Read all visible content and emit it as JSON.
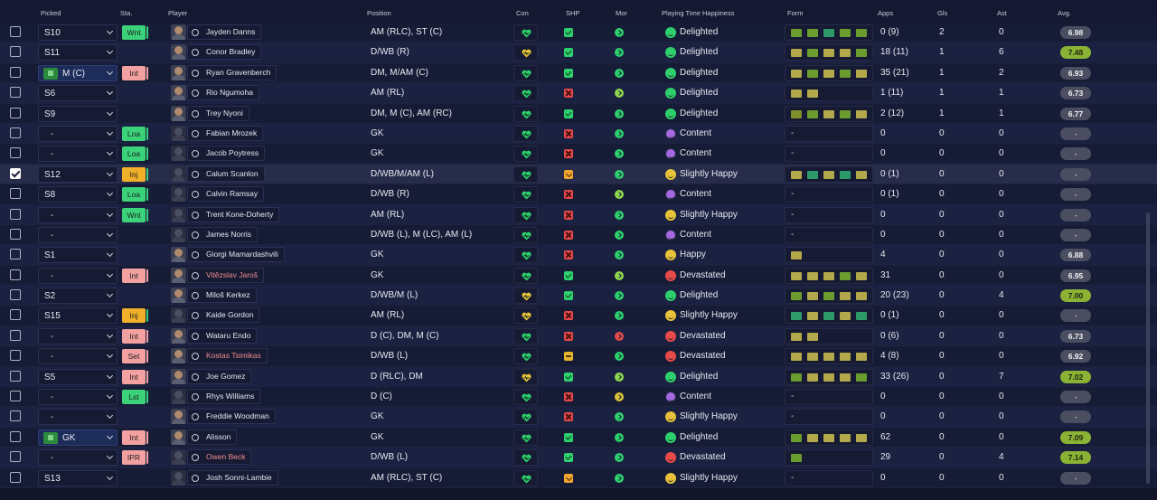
{
  "headers": {
    "picked": "Picked",
    "sta": "Sta.",
    "player": "Player",
    "position": "Position",
    "con": "Con",
    "shp": "SHP",
    "mor": "Mor",
    "happiness": "Playing Time Happiness",
    "form": "Form",
    "apps": "Apps",
    "gls": "Gls",
    "ast": "Ast",
    "avg": "Avg."
  },
  "colors": {
    "delighted": "#2ed06d",
    "content": "#a469e0",
    "slightly_happy": "#e8c23a",
    "devastated": "#e84a4a",
    "avg_good": "#8ab234"
  },
  "rows": [
    {
      "checked": false,
      "pick": "S10",
      "sta": "Wnt",
      "name": "Jayden Danns",
      "red": false,
      "pos": "AM (RLC), ST (C)",
      "con": "green",
      "shp": "ok",
      "mor": "g",
      "hap": "Delighted",
      "hapk": "del",
      "form": [
        "b",
        "b",
        "c",
        "b",
        "b"
      ],
      "apps": "0 (9)",
      "gls": "2",
      "ast": "0",
      "avg": "6.98",
      "avgk": "n",
      "face": true
    },
    {
      "checked": false,
      "pick": "S11",
      "sta": "",
      "name": "Conor Bradley",
      "red": false,
      "pos": "D/WB (R)",
      "con": "yellow",
      "shp": "ok",
      "mor": "g",
      "hap": "Delighted",
      "hapk": "del",
      "form": [
        "a",
        "b",
        "a",
        "a",
        "b"
      ],
      "apps": "18 (11)",
      "gls": "1",
      "ast": "6",
      "avg": "7.48",
      "avgk": "gr",
      "face": true
    },
    {
      "checked": false,
      "pick": "M (C)",
      "pickIcon": true,
      "sta": "Int",
      "name": "Ryan Gravenberch",
      "red": false,
      "pos": "DM, M/AM (C)",
      "con": "green",
      "shp": "ok",
      "mor": "g",
      "hap": "Delighted",
      "hapk": "del",
      "form": [
        "a",
        "b",
        "a",
        "b",
        "a"
      ],
      "apps": "35 (21)",
      "gls": "1",
      "ast": "2",
      "avg": "6.93",
      "avgk": "n",
      "face": true
    },
    {
      "checked": false,
      "pick": "S6",
      "sta": "",
      "name": "Rio Ngumoha",
      "red": false,
      "pos": "AM (RL)",
      "con": "green",
      "shp": "no",
      "mor": "lg",
      "hap": "Delighted",
      "hapk": "del",
      "form": [
        "a",
        "a"
      ],
      "apps": "1 (11)",
      "gls": "1",
      "ast": "1",
      "avg": "6.73",
      "avgk": "n",
      "face": true
    },
    {
      "checked": false,
      "pick": "S9",
      "sta": "",
      "name": "Trey Nyoni",
      "red": false,
      "pos": "DM, M (C), AM (RC)",
      "con": "green",
      "shp": "ok",
      "mor": "g",
      "hap": "Delighted",
      "hapk": "del",
      "form": [
        "d",
        "b",
        "a",
        "b",
        "a"
      ],
      "apps": "2 (12)",
      "gls": "1",
      "ast": "1",
      "avg": "6.77",
      "avgk": "n",
      "face": true
    },
    {
      "checked": false,
      "pick": "-",
      "sta": "Loa",
      "name": "Fabian Mrozek",
      "red": false,
      "pos": "GK",
      "con": "green",
      "shp": "no",
      "mor": "g",
      "hap": "Content",
      "hapk": "con",
      "form": [],
      "apps": "0",
      "gls": "0",
      "ast": "0",
      "avg": "-",
      "avgk": "dash",
      "face": false
    },
    {
      "checked": false,
      "pick": "-",
      "sta": "Loa",
      "name": "Jacob Poytress",
      "red": false,
      "pos": "GK",
      "con": "green",
      "shp": "no",
      "mor": "g",
      "hap": "Content",
      "hapk": "con",
      "form": [],
      "apps": "0",
      "gls": "0",
      "ast": "0",
      "avg": "-",
      "avgk": "dash",
      "face": false
    },
    {
      "checked": true,
      "pick": "S12",
      "sta": "Inj",
      "name": "Calum Scanlon",
      "red": false,
      "pos": "D/WB/M/AM (L)",
      "con": "green",
      "shp": "warn",
      "mor": "g",
      "hap": "Slightly Happy",
      "hapk": "sh",
      "form": [
        "a",
        "c",
        "a",
        "c",
        "a"
      ],
      "apps": "0 (1)",
      "gls": "0",
      "ast": "0",
      "avg": "-",
      "avgk": "dash",
      "face": false,
      "sel": true
    },
    {
      "checked": false,
      "pick": "S8",
      "sta": "Loa",
      "name": "Calvin Ramsay",
      "red": false,
      "pos": "D/WB (R)",
      "con": "green",
      "shp": "no",
      "mor": "lg",
      "hap": "Content",
      "hapk": "con",
      "form": [],
      "apps": "0 (1)",
      "gls": "0",
      "ast": "0",
      "avg": "-",
      "avgk": "dash",
      "face": false
    },
    {
      "checked": false,
      "pick": "-",
      "sta": "Wnt",
      "name": "Trent Kone-Doherty",
      "red": false,
      "pos": "AM (RL)",
      "con": "green",
      "shp": "no",
      "mor": "g",
      "hap": "Slightly Happy",
      "hapk": "sh",
      "form": [],
      "apps": "0",
      "gls": "0",
      "ast": "0",
      "avg": "-",
      "avgk": "dash",
      "face": false
    },
    {
      "checked": false,
      "pick": "-",
      "sta": "",
      "name": "James Norris",
      "red": false,
      "pos": "D/WB (L), M (LC), AM (L)",
      "con": "green",
      "shp": "no",
      "mor": "g",
      "hap": "Content",
      "hapk": "con",
      "form": [],
      "apps": "0",
      "gls": "0",
      "ast": "0",
      "avg": "-",
      "avgk": "dash",
      "face": false
    },
    {
      "checked": false,
      "pick": "S1",
      "sta": "",
      "name": "Giorgi Mamardashvili",
      "red": false,
      "pos": "GK",
      "con": "green",
      "shp": "no",
      "mor": "g",
      "hap": "Happy",
      "hapk": "hap",
      "form": [
        "a"
      ],
      "apps": "4",
      "gls": "0",
      "ast": "0",
      "avg": "6.88",
      "avgk": "n",
      "face": true
    },
    {
      "checked": false,
      "pick": "-",
      "sta": "Int",
      "name": "Vitězslav Jaroš",
      "red": true,
      "pos": "GK",
      "con": "green",
      "shp": "ok",
      "mor": "lg",
      "hap": "Devastated",
      "hapk": "dev",
      "form": [
        "a",
        "a",
        "a",
        "b",
        "a"
      ],
      "apps": "31",
      "gls": "0",
      "ast": "0",
      "avg": "6.95",
      "avgk": "n",
      "face": true
    },
    {
      "checked": false,
      "pick": "S2",
      "sta": "",
      "name": "Miloš Kerkez",
      "red": false,
      "pos": "D/WB/M (L)",
      "con": "yellow",
      "shp": "ok",
      "mor": "g",
      "hap": "Delighted",
      "hapk": "del",
      "form": [
        "b",
        "a",
        "b",
        "a",
        "a"
      ],
      "apps": "20 (23)",
      "gls": "0",
      "ast": "4",
      "avg": "7.00",
      "avgk": "gr",
      "face": true
    },
    {
      "checked": false,
      "pick": "S15",
      "sta": "Inj",
      "name": "Kaide Gordon",
      "red": false,
      "pos": "AM (RL)",
      "con": "yellow",
      "shp": "no",
      "mor": "g",
      "hap": "Slightly Happy",
      "hapk": "sh",
      "form": [
        "c",
        "a",
        "c",
        "a",
        "c"
      ],
      "apps": "0 (1)",
      "gls": "0",
      "ast": "0",
      "avg": "-",
      "avgk": "dash",
      "face": false
    },
    {
      "checked": false,
      "pick": "-",
      "sta": "Int",
      "name": "Wataru Endo",
      "red": false,
      "pos": "D (C), DM, M (C)",
      "con": "green",
      "shp": "no",
      "mor": "r",
      "hap": "Devastated",
      "hapk": "dev",
      "form": [
        "a",
        "a"
      ],
      "apps": "0 (6)",
      "gls": "0",
      "ast": "0",
      "avg": "6.73",
      "avgk": "n",
      "face": true
    },
    {
      "checked": false,
      "pick": "-",
      "sta": "Set",
      "name": "Kostas Tsimikas",
      "red": true,
      "pos": "D/WB (L)",
      "con": "green",
      "shp": "mid",
      "mor": "g",
      "hap": "Devastated",
      "hapk": "dev",
      "form": [
        "a",
        "a",
        "a",
        "a",
        "a"
      ],
      "apps": "4 (8)",
      "gls": "0",
      "ast": "0",
      "avg": "6.92",
      "avgk": "n",
      "face": true
    },
    {
      "checked": false,
      "pick": "S5",
      "sta": "Int",
      "name": "Joe Gomez",
      "red": false,
      "pos": "D (RLC), DM",
      "con": "yellow",
      "shp": "ok",
      "mor": "lg",
      "hap": "Delighted",
      "hapk": "del",
      "form": [
        "b",
        "a",
        "a",
        "a",
        "b"
      ],
      "apps": "33 (26)",
      "gls": "0",
      "ast": "7",
      "avg": "7.02",
      "avgk": "gr",
      "face": true
    },
    {
      "checked": false,
      "pick": "-",
      "sta": "Lst",
      "name": "Rhys Williams",
      "red": false,
      "pos": "D (C)",
      "con": "green",
      "shp": "no",
      "mor": "y",
      "hap": "Content",
      "hapk": "con",
      "form": [],
      "apps": "0",
      "gls": "0",
      "ast": "0",
      "avg": "-",
      "avgk": "dash",
      "face": false
    },
    {
      "checked": false,
      "pick": "-",
      "sta": "",
      "name": "Freddie Woodman",
      "red": false,
      "pos": "GK",
      "con": "green",
      "shp": "no",
      "mor": "g",
      "hap": "Slightly Happy",
      "hapk": "sh",
      "form": [],
      "apps": "0",
      "gls": "0",
      "ast": "0",
      "avg": "-",
      "avgk": "dash",
      "face": true
    },
    {
      "checked": false,
      "pick": "GK",
      "pickIcon": true,
      "sta": "Int",
      "name": "Alisson",
      "red": false,
      "pos": "GK",
      "con": "green",
      "shp": "ok",
      "mor": "g",
      "hap": "Delighted",
      "hapk": "del",
      "form": [
        "b",
        "a",
        "a",
        "a",
        "a"
      ],
      "apps": "62",
      "gls": "0",
      "ast": "0",
      "avg": "7.09",
      "avgk": "gr",
      "face": true
    },
    {
      "checked": false,
      "pick": "-",
      "sta": "IPR",
      "name": "Owen Beck",
      "red": true,
      "pos": "D/WB (L)",
      "con": "green",
      "shp": "ok",
      "mor": "g",
      "hap": "Devastated",
      "hapk": "dev",
      "form": [
        "b"
      ],
      "apps": "29",
      "gls": "0",
      "ast": "4",
      "avg": "7.14",
      "avgk": "gr",
      "face": false
    },
    {
      "checked": false,
      "pick": "S13",
      "sta": "",
      "name": "Josh Sonni-Lambie",
      "red": false,
      "pos": "AM (RLC), ST (C)",
      "con": "green",
      "shp": "warn",
      "mor": "g",
      "hap": "Slightly Happy",
      "hapk": "sh",
      "form": [],
      "apps": "0",
      "gls": "0",
      "ast": "0",
      "avg": "-",
      "avgk": "dash",
      "face": false
    }
  ]
}
